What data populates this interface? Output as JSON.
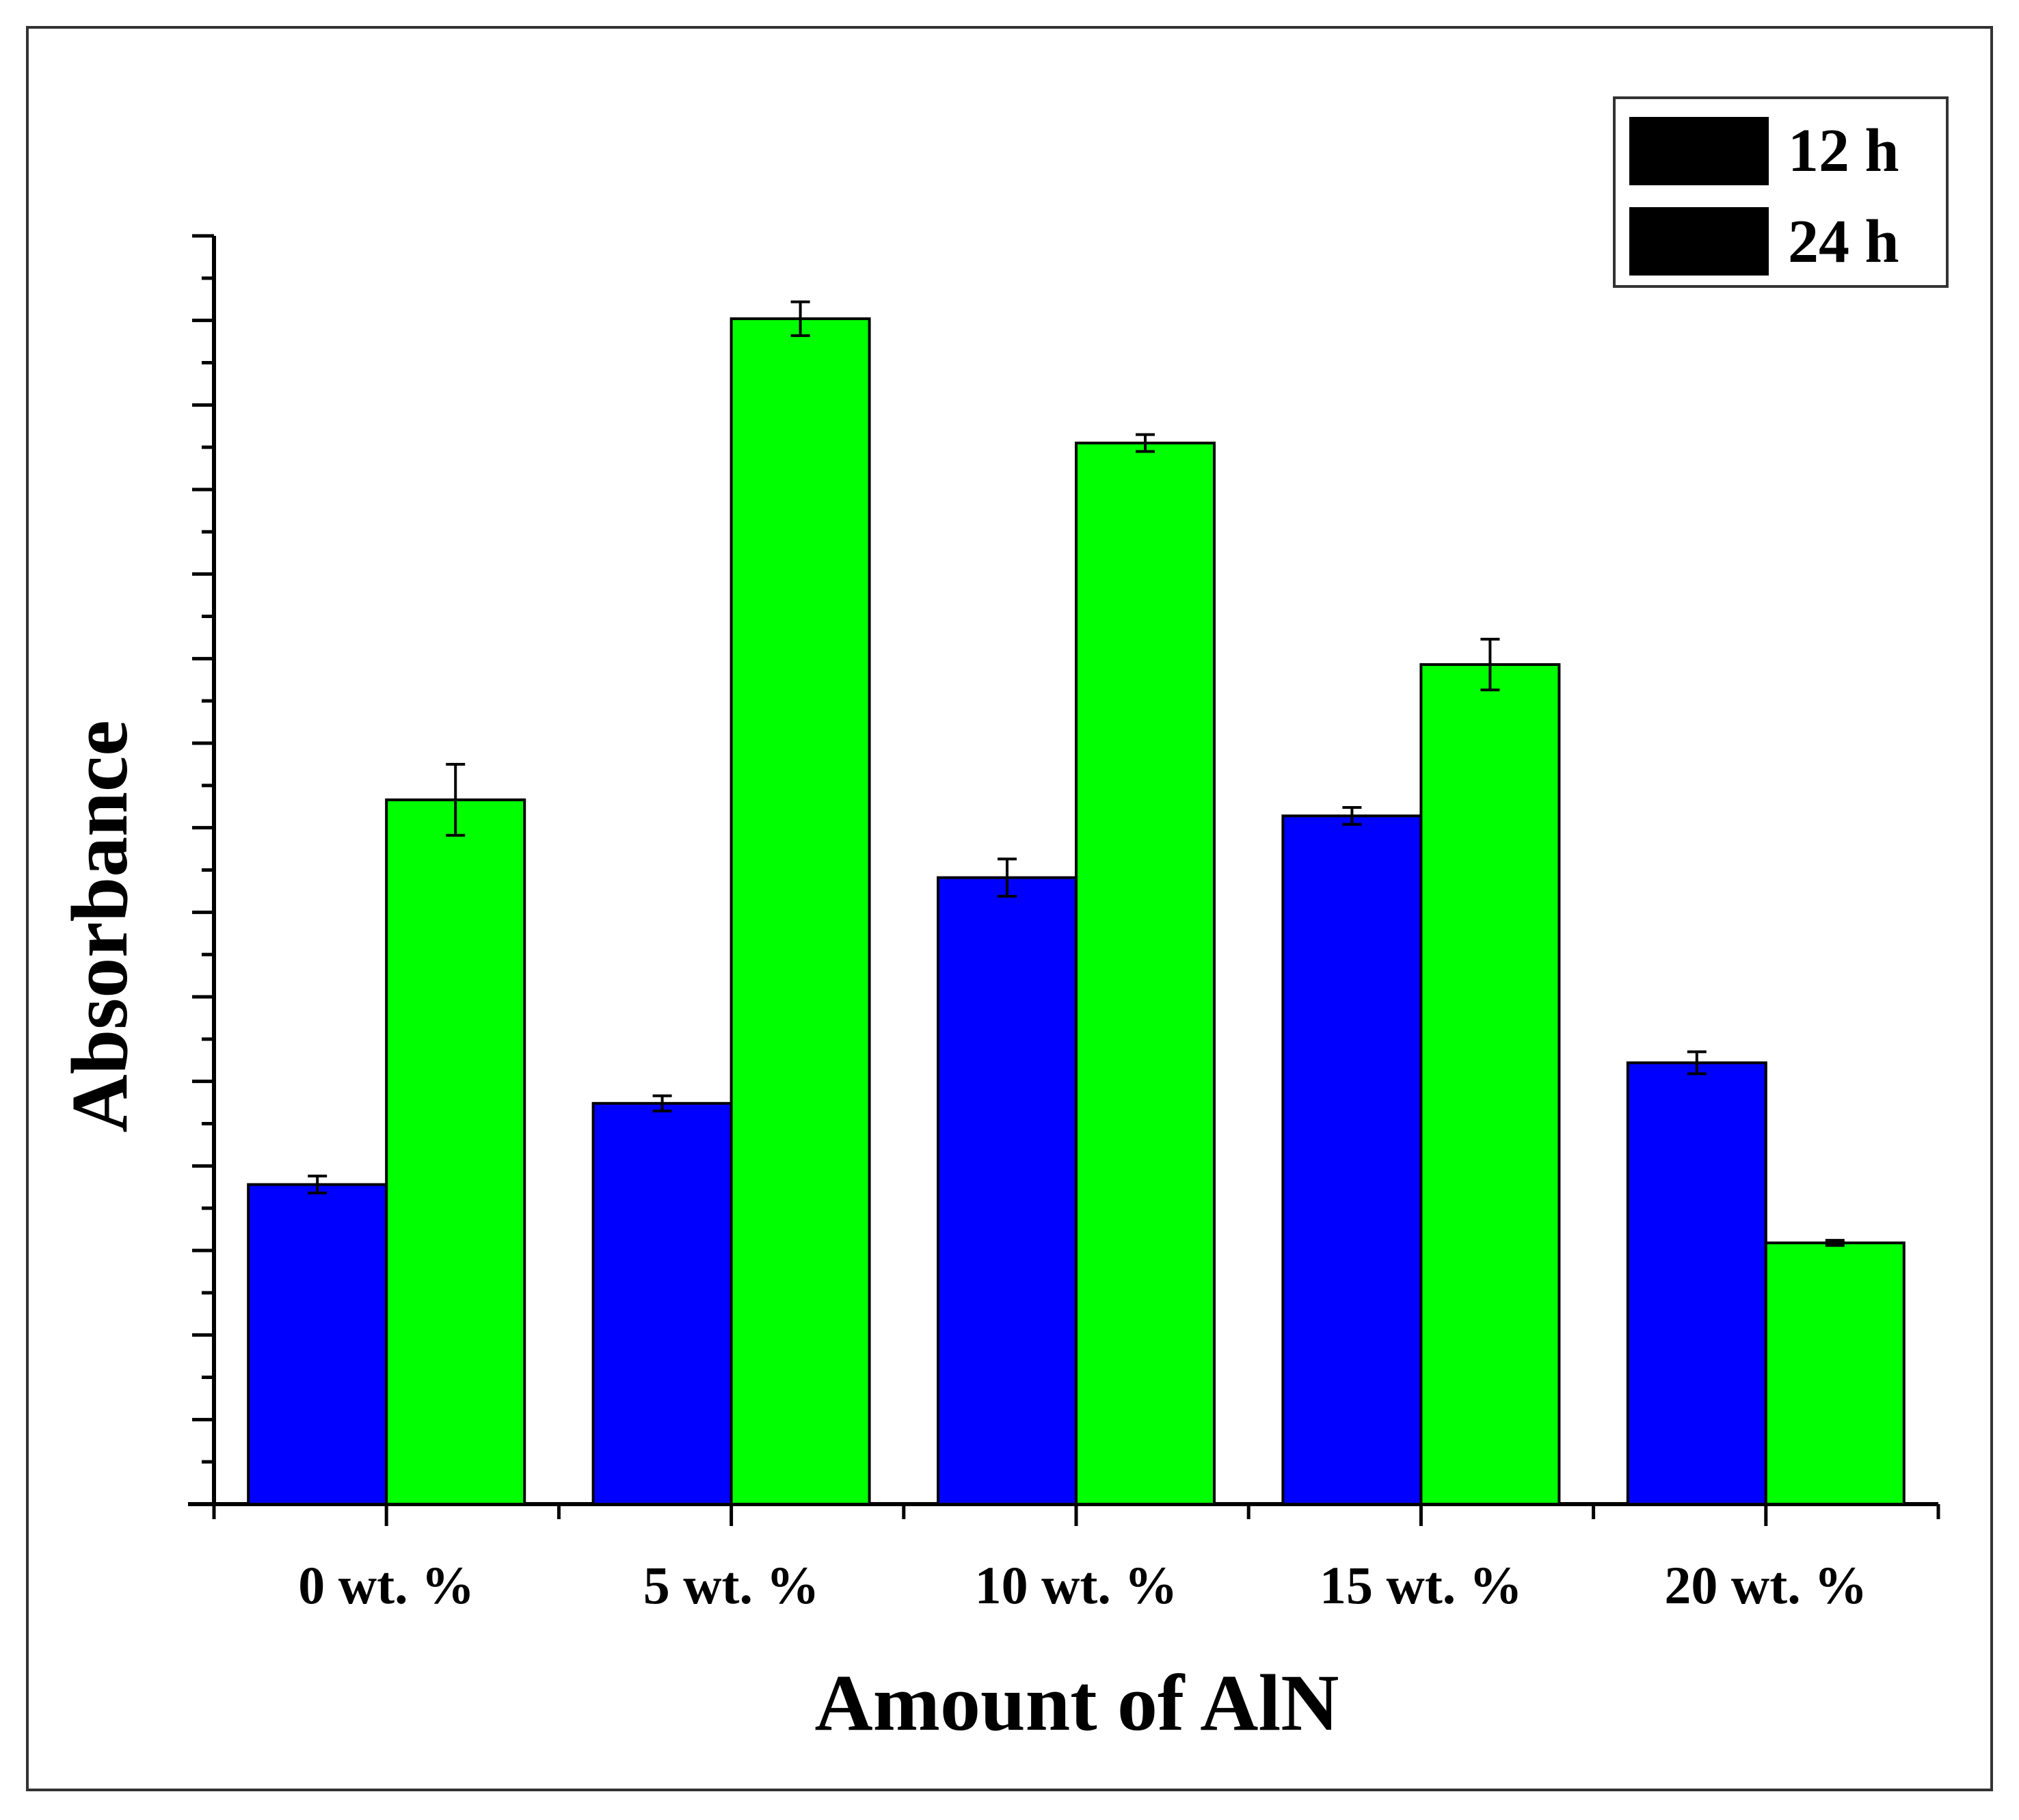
{
  "chart_data": {
    "type": "bar",
    "title": "",
    "xlabel": "Amount of AlN",
    "ylabel": "Absorbance",
    "ylim": [
      0,
      15
    ],
    "y_tick_labels_visible": false,
    "categories": [
      "0 wt. %",
      "5 wt. %",
      "10 wt. %",
      "15 wt. %",
      "20 wt. %"
    ],
    "series": [
      {
        "name": "12 h",
        "color": "#0000ff",
        "values": [
          3.78,
          4.74,
          7.41,
          8.14,
          5.22
        ],
        "errors": [
          0.1,
          0.09,
          0.22,
          0.1,
          0.13
        ]
      },
      {
        "name": "24 h",
        "color": "#00ff00",
        "values": [
          8.33,
          14.02,
          12.55,
          9.93,
          3.09
        ],
        "errors": [
          0.42,
          0.2,
          0.1,
          0.3,
          0.03
        ]
      }
    ],
    "legend_position": "top-right",
    "grid": false
  }
}
